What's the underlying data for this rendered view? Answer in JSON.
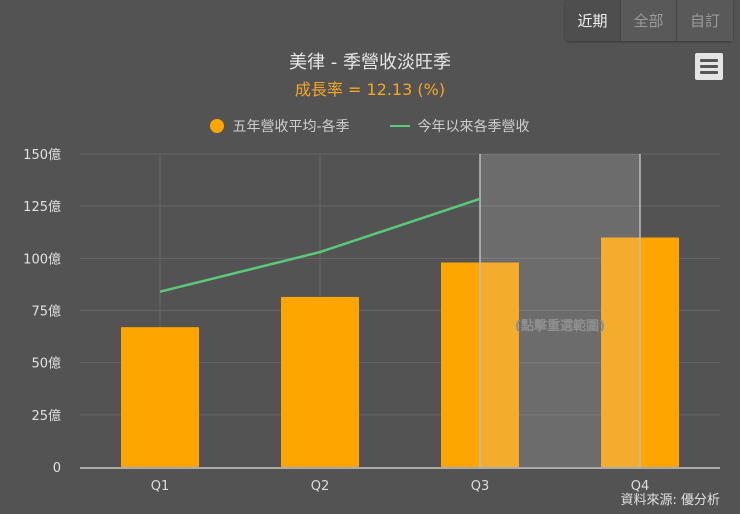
{
  "range_selector": {
    "buttons": [
      {
        "label": "近期",
        "active": true
      },
      {
        "label": "全部",
        "active": false
      },
      {
        "label": "自訂",
        "active": false
      }
    ]
  },
  "menu": {
    "icon": "hamburger-menu-icon"
  },
  "header": {
    "title": "美律 - 季營收淡旺季",
    "subtitle": "成長率 = 12.13 (%)"
  },
  "legend": [
    {
      "label": "五年營收平均-各季",
      "color": "#ffa500",
      "symbol": "circle"
    },
    {
      "label": "今年以來各季營收",
      "color": "#5ac97a",
      "symbol": "line"
    }
  ],
  "selection_band": {
    "label": "(點擊重選範圍)",
    "from": "Q3",
    "to": "Q4"
  },
  "source": "資料來源: 優分析",
  "colors": {
    "background": "#535353",
    "bar": "#ffa500",
    "line": "#5ac97a",
    "subtitle": "#f5a623"
  },
  "chart_data": {
    "type": "bar",
    "title": "美律 - 季營收淡旺季",
    "subtitle": "成長率 = 12.13 (%)",
    "categories": [
      "Q1",
      "Q2",
      "Q3",
      "Q4"
    ],
    "series": [
      {
        "name": "五年營收平均-各季",
        "type": "bar",
        "color": "#ffa500",
        "values": [
          67,
          81.5,
          98,
          110
        ]
      },
      {
        "name": "今年以來各季營收",
        "type": "line",
        "color": "#5ac97a",
        "values": [
          84,
          103,
          128.5,
          null
        ]
      }
    ],
    "xlabel": "",
    "ylabel": "",
    "yticks": [
      "0",
      "25億",
      "50億",
      "75億",
      "100億",
      "125億",
      "150億"
    ],
    "ylim": [
      0,
      150
    ],
    "grid": true,
    "legend_position": "top",
    "annotations": [
      "(點擊重選範圍)",
      "資料來源: 優分析"
    ]
  }
}
